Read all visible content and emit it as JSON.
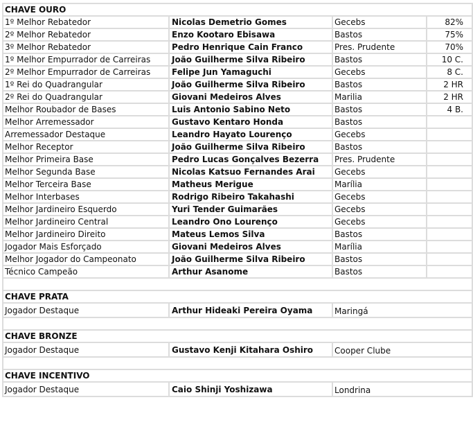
{
  "sections": [
    {
      "title": "CHAVE OURO",
      "columns": 4,
      "rows": [
        {
          "award": "1º Melhor Rebatedor",
          "player": "Nicolas Demetrio Gomes",
          "team": "Gecebs",
          "stat": "82%"
        },
        {
          "award": "2º Melhor Rebatedor",
          "player": "Enzo Kootaro Ebisawa",
          "team": "Bastos",
          "stat": "75%"
        },
        {
          "award": "3º Melhor Rebatedor",
          "player": "Pedro Henrique Cain Franco",
          "team": "Pres. Prudente",
          "stat": "70%"
        },
        {
          "award": "1º Melhor Empurrador de Carreiras",
          "player": "João Guilherme Silva Ribeiro",
          "team": "Bastos",
          "stat": "10 C."
        },
        {
          "award": "2º Melhor Empurrador de Carreiras",
          "player": "Felipe Jun Yamaguchi",
          "team": "Gecebs",
          "stat": "8 C."
        },
        {
          "award": "1º Rei do Quadrangular",
          "player": "João Guilherme Silva Ribeiro",
          "team": "Bastos",
          "stat": "2 HR"
        },
        {
          "award": "2º Rei do Quadrangular",
          "player": "Giovani Medeiros Alves",
          "team": "Marilia",
          "stat": "2 HR"
        },
        {
          "award": "Melhor Roubador de Bases",
          "player": "Luis Antonio Sabino Neto",
          "team": "Bastos",
          "stat": "4 B."
        },
        {
          "award": "Melhor Arremessador",
          "player": "Gustavo Kentaro Honda",
          "team": "Bastos",
          "stat": ""
        },
        {
          "award": "Arremessador Destaque",
          "player": "Leandro Hayato Lourenço",
          "team": "Gecebs",
          "stat": ""
        },
        {
          "award": "Melhor Receptor",
          "player": "João Guilherme Silva Ribeiro",
          "team": "Bastos",
          "stat": ""
        },
        {
          "award": "Melhor Primeira Base",
          "player": "Pedro Lucas Gonçalves Bezerra",
          "team": "Pres. Prudente",
          "stat": ""
        },
        {
          "award": "Melhor Segunda Base",
          "player": "Nicolas Katsuo Fernandes Arai",
          "team": "Gecebs",
          "stat": ""
        },
        {
          "award": "Melhor Terceira Base",
          "player": "Matheus Merigue",
          "team": "Marília",
          "stat": ""
        },
        {
          "award": "Melhor Interbases",
          "player": "Rodrigo Ribeiro Takahashi",
          "team": "Gecebs",
          "stat": ""
        },
        {
          "award": "Melhor Jardineiro Esquerdo",
          "player": "Yuri Tender Guimarães",
          "team": "Gecebs",
          "stat": ""
        },
        {
          "award": "Melhor Jardineiro Central",
          "player": "Leandro Ono Lourenço",
          "team": "Gecebs",
          "stat": ""
        },
        {
          "award": "Melhor Jardineiro Direito",
          "player": "Mateus Lemos Silva",
          "team": "Bastos",
          "stat": ""
        },
        {
          "award": "Jogador Mais Esforçado",
          "player": "Giovani Medeiros Alves",
          "team": "Marília",
          "stat": ""
        },
        {
          "award": "Melhor Jogador do Campeonato",
          "player": "João Guilherme Silva Ribeiro",
          "team": "Bastos",
          "stat": ""
        },
        {
          "award": "Técnico Campeão",
          "player": "Arthur Asanome",
          "team": "Bastos",
          "stat": ""
        }
      ]
    },
    {
      "title": "CHAVE PRATA",
      "columns": 3,
      "rows": [
        {
          "award": "Jogador Destaque",
          "player": "Arthur Hideaki Pereira Oyama",
          "team": "Maringá"
        }
      ]
    },
    {
      "title": "CHAVE BRONZE",
      "columns": 3,
      "rows": [
        {
          "award": "Jogador Destaque",
          "player": "Gustavo Kenji Kitahara Oshiro",
          "team": "Cooper Clube"
        }
      ]
    },
    {
      "title": "CHAVE INCENTIVO",
      "columns": 3,
      "rows": [
        {
          "award": "Jogador Destaque",
          "player": "Caio Shinji Yoshizawa",
          "team": "Londrina"
        }
      ]
    }
  ]
}
